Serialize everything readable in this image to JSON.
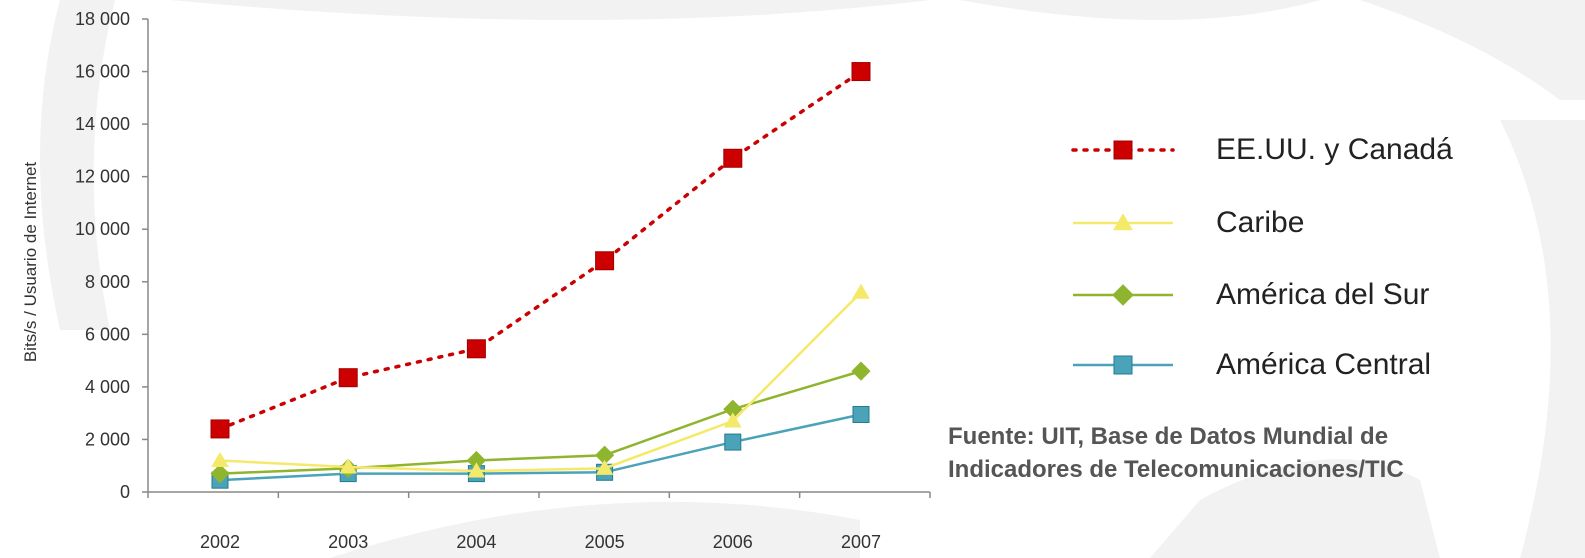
{
  "chart_data": {
    "type": "line",
    "categories": [
      "2002",
      "2003",
      "2004",
      "2005",
      "2006",
      "2007"
    ],
    "ylabel": "Bits/s / Usuario de Internet",
    "ylim": [
      0,
      18000
    ],
    "yticks": [
      "0",
      "2 000",
      "4 000",
      "6 000",
      "8 000",
      "10 000",
      "12 000",
      "14 000",
      "16 000",
      "18 000"
    ],
    "ytick_values": [
      0,
      2000,
      4000,
      6000,
      8000,
      10000,
      12000,
      14000,
      16000,
      18000
    ],
    "grid": false,
    "legend_position": "right",
    "series": [
      {
        "name": "EE.UU. y Canadá",
        "color": "#cc0000",
        "marker": "square",
        "line": "dotted",
        "values": [
          2400,
          4350,
          5450,
          8800,
          12700,
          16000
        ]
      },
      {
        "name": "Caribe",
        "color": "#f5e96a",
        "marker": "triangle",
        "line": "solid",
        "values": [
          1200,
          950,
          800,
          900,
          2700,
          7600
        ]
      },
      {
        "name": "América del Sur",
        "color": "#8fb52e",
        "marker": "diamond",
        "line": "solid",
        "values": [
          700,
          900,
          1200,
          1400,
          3150,
          4600
        ]
      },
      {
        "name": "América Central",
        "color": "#4aa3b8",
        "marker": "square",
        "line": "solid",
        "values": [
          450,
          700,
          700,
          750,
          1900,
          2950
        ]
      }
    ]
  },
  "legend": {
    "items": [
      {
        "label": "EE.UU. y Canadá",
        "color": "#cc0000",
        "marker": "square",
        "line": "dotted"
      },
      {
        "label": "Caribe",
        "color": "#f5e96a",
        "marker": "triangle",
        "line": "solid"
      },
      {
        "label": "América del Sur",
        "color": "#8fb52e",
        "marker": "diamond",
        "line": "solid"
      },
      {
        "label": "América Central",
        "color": "#4aa3b8",
        "marker": "square",
        "line": "solid"
      }
    ]
  },
  "source": {
    "line1": "Fuente: UIT, Base de Datos Mundial de",
    "line2": "Indicadores de Telecomunicaciones/TIC"
  }
}
